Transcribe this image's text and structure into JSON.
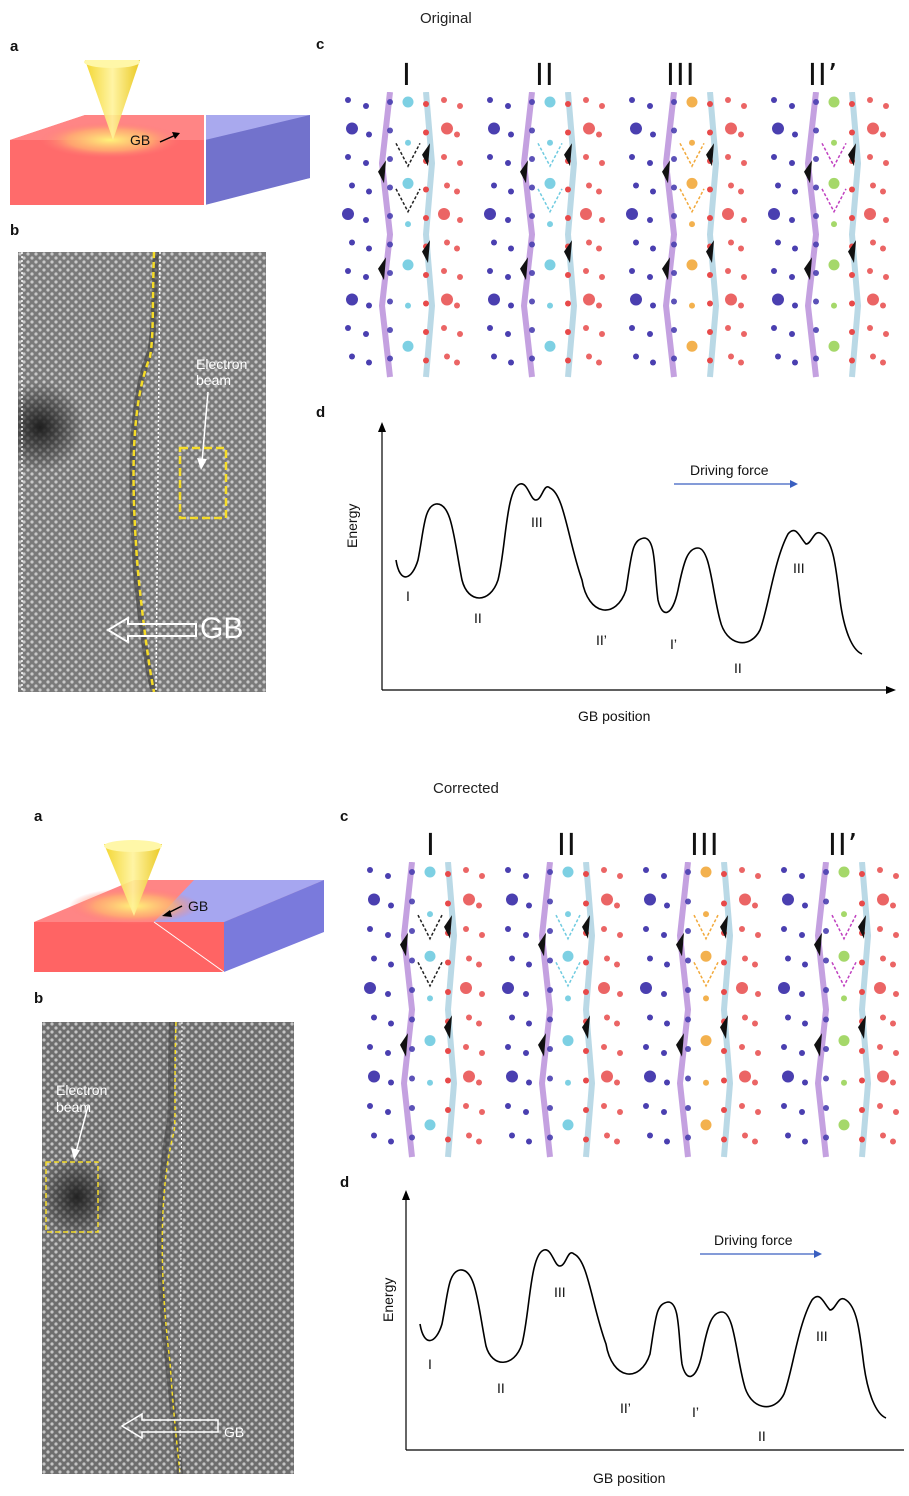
{
  "original": {
    "header": "Original",
    "labels": {
      "a": "a",
      "b": "b",
      "c": "c",
      "d": "d"
    },
    "panel_a": {
      "gb_label": "GB"
    },
    "panel_b": {
      "beam_label_line1": "Electron",
      "beam_label_line2": "beam",
      "gb_label": "GB"
    },
    "panel_c": {
      "columns": [
        "I",
        "II",
        "III",
        "II’"
      ]
    },
    "panel_d": {
      "ylabel": "Energy",
      "xlabel": "GB position",
      "arrow_label": "Driving force",
      "state_labels": [
        "I",
        "III",
        "II",
        "II’",
        "I’",
        "II",
        "III"
      ]
    }
  },
  "corrected": {
    "header": "Corrected",
    "labels": {
      "a": "a",
      "b": "b",
      "c": "c",
      "d": "d"
    },
    "panel_a": {
      "gb_label": "GB"
    },
    "panel_b": {
      "beam_label_line1": "Electron",
      "beam_label_line2": "beam",
      "gb_label": "GB"
    },
    "panel_c": {
      "columns": [
        "I",
        "II",
        "III",
        "II’"
      ]
    },
    "panel_d": {
      "ylabel": "Energy",
      "xlabel": "GB position",
      "arrow_label": "Driving force",
      "state_labels": [
        "I",
        "III",
        "II",
        "II’",
        "I’",
        "II",
        "III"
      ]
    }
  },
  "colors": {
    "left_grain": "#4a3fb0",
    "right_grain": "#e84a4a",
    "state_II_atoms": "#6fcbe0",
    "state_III_atoms": "#f2a93b",
    "state_IIp_atoms": "#9bd45a",
    "boundary_left": "#b58ad8",
    "boundary_right": "#a9cfe0",
    "beam": "#f5e04a",
    "arrow_blue": "#3a5fc0"
  }
}
